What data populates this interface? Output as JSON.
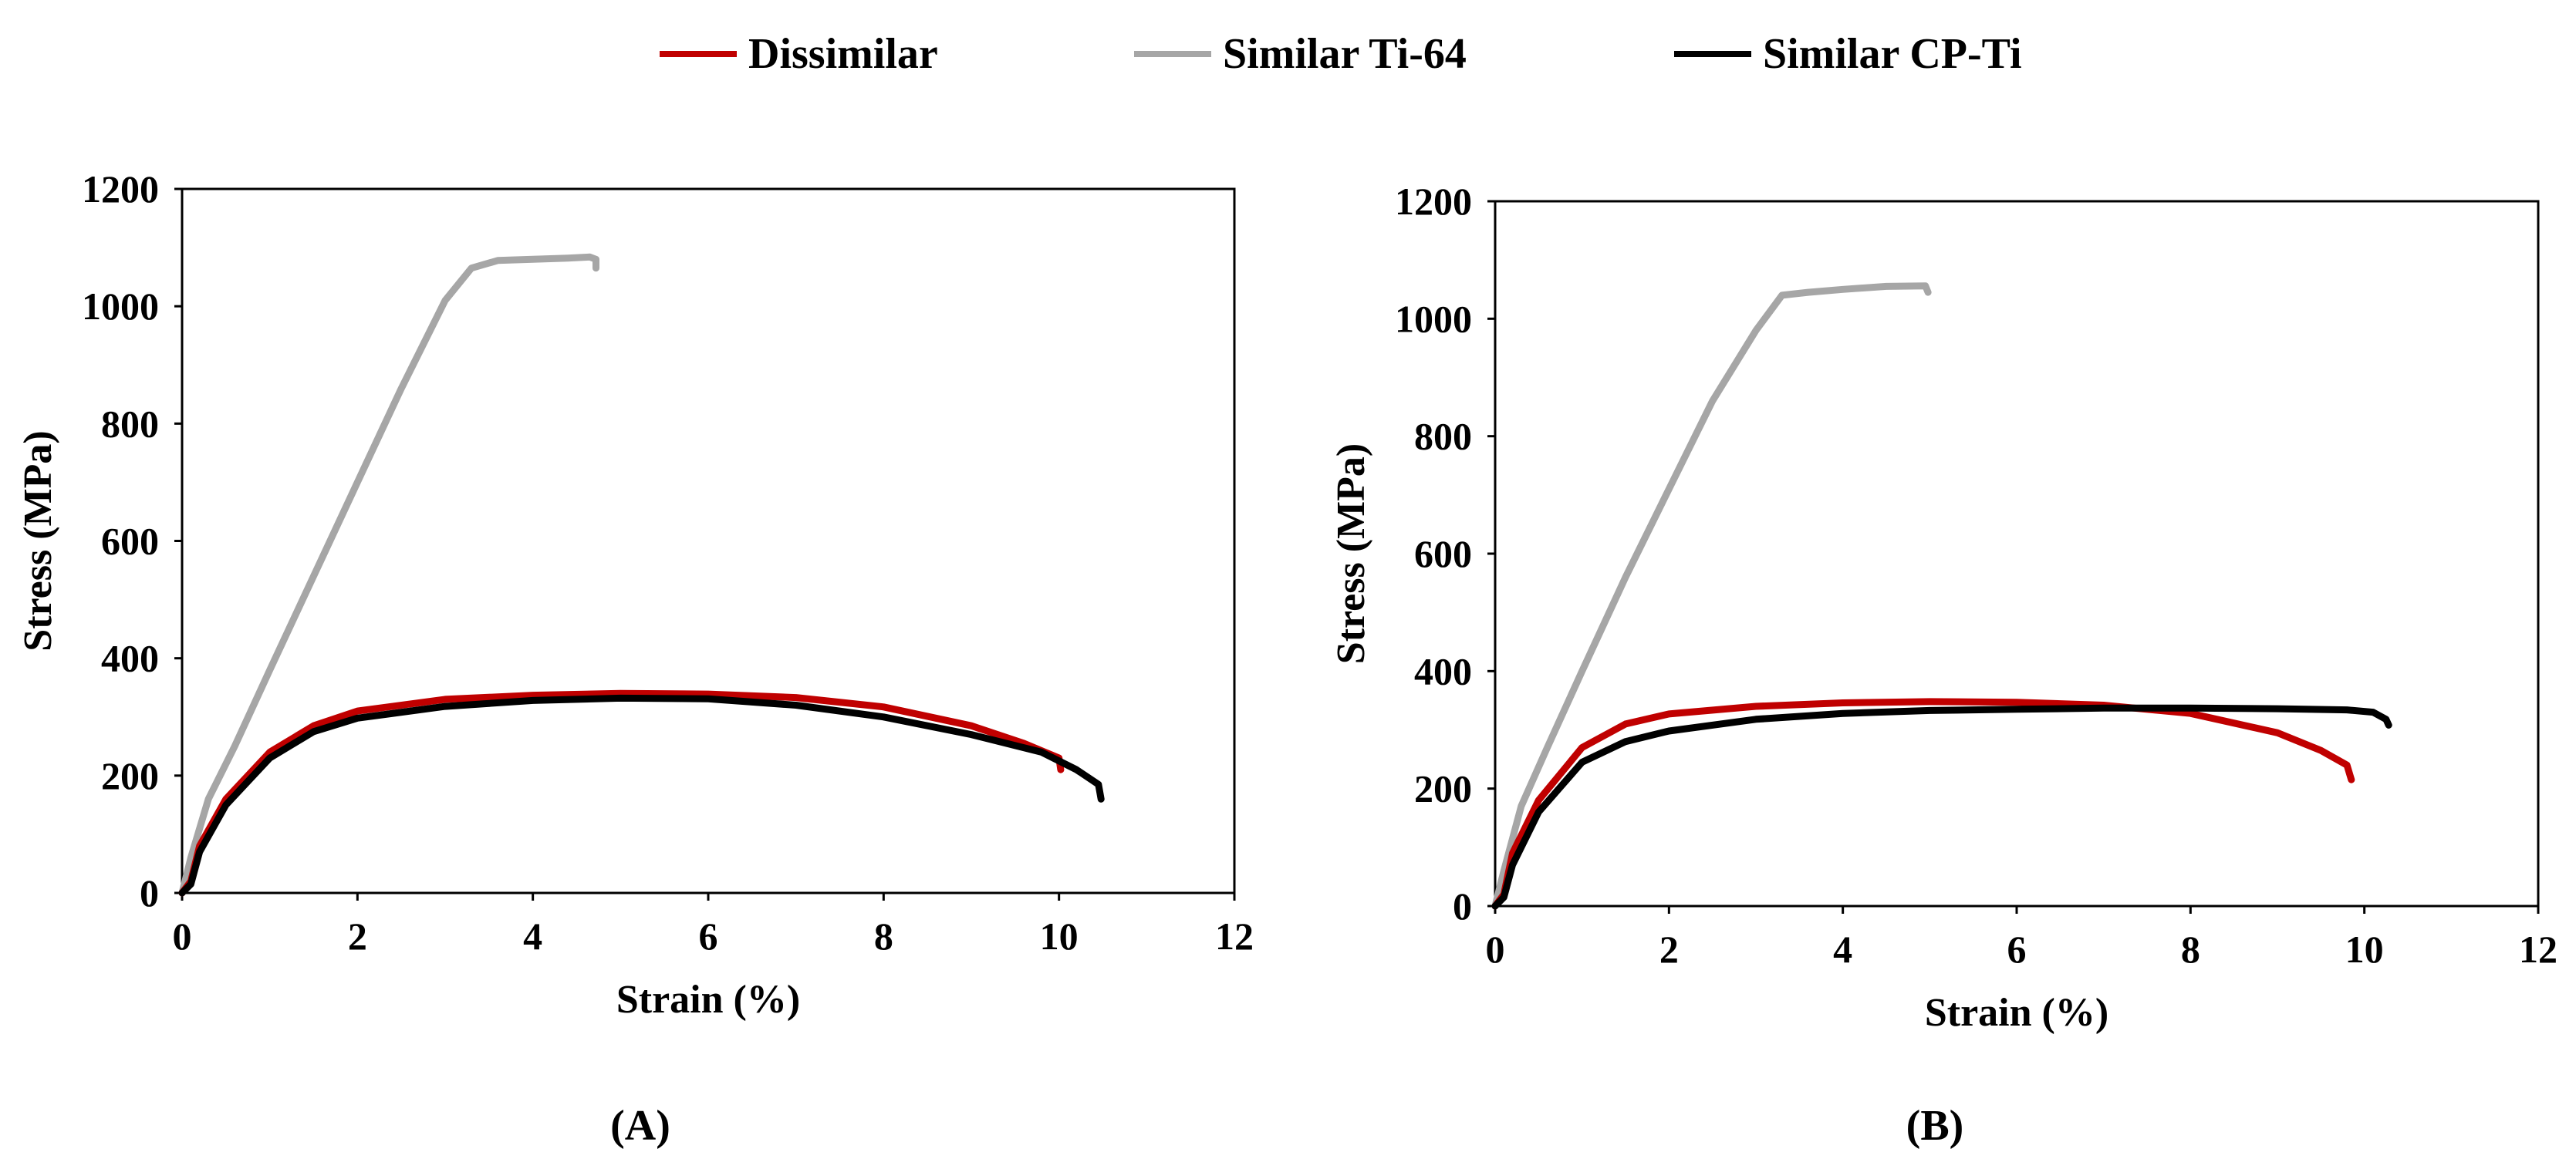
{
  "legend": [
    {
      "label": "Dissimilar",
      "color": "#c00000"
    },
    {
      "label": "Similar Ti-64",
      "color": "#a6a6a6"
    },
    {
      "label": "Similar CP-Ti",
      "color": "#000000"
    }
  ],
  "chart_data": [
    {
      "type": "line",
      "panel_label": "(A)",
      "xlabel": "Strain (%)",
      "ylabel": "Stress (MPa)",
      "xlim": [
        0,
        12
      ],
      "ylim": [
        0,
        1200
      ],
      "xticks": [
        0,
        2,
        4,
        6,
        8,
        10,
        12
      ],
      "yticks": [
        0,
        200,
        400,
        600,
        800,
        1000,
        1200
      ],
      "series": [
        {
          "name": "Similar Ti-64",
          "color": "#a6a6a6",
          "points": [
            [
              0,
              0
            ],
            [
              0.1,
              60
            ],
            [
              0.3,
              160
            ],
            [
              0.6,
              250
            ],
            [
              1.0,
              380
            ],
            [
              1.5,
              540
            ],
            [
              2.0,
              700
            ],
            [
              2.5,
              860
            ],
            [
              3.0,
              1010
            ],
            [
              3.3,
              1065
            ],
            [
              3.6,
              1078
            ],
            [
              4.0,
              1080
            ],
            [
              4.4,
              1082
            ],
            [
              4.65,
              1084
            ],
            [
              4.72,
              1080
            ],
            [
              4.72,
              1065
            ]
          ]
        },
        {
          "name": "Dissimilar",
          "color": "#c00000",
          "points": [
            [
              0,
              0
            ],
            [
              0.1,
              20
            ],
            [
              0.2,
              80
            ],
            [
              0.5,
              160
            ],
            [
              1.0,
              240
            ],
            [
              1.5,
              285
            ],
            [
              2.0,
              310
            ],
            [
              3.0,
              330
            ],
            [
              4.0,
              337
            ],
            [
              5.0,
              340
            ],
            [
              6.0,
              339
            ],
            [
              7.0,
              333
            ],
            [
              8.0,
              317
            ],
            [
              9.0,
              285
            ],
            [
              9.6,
              255
            ],
            [
              10.0,
              230
            ],
            [
              10.02,
              210
            ]
          ]
        },
        {
          "name": "Similar CP-Ti",
          "color": "#000000",
          "points": [
            [
              0,
              0
            ],
            [
              0.1,
              15
            ],
            [
              0.2,
              70
            ],
            [
              0.5,
              150
            ],
            [
              1.0,
              230
            ],
            [
              1.5,
              275
            ],
            [
              2.0,
              298
            ],
            [
              3.0,
              318
            ],
            [
              4.0,
              328
            ],
            [
              5.0,
              332
            ],
            [
              6.0,
              331
            ],
            [
              7.0,
              320
            ],
            [
              8.0,
              300
            ],
            [
              9.0,
              270
            ],
            [
              9.8,
              240
            ],
            [
              10.2,
              210
            ],
            [
              10.45,
              185
            ],
            [
              10.48,
              160
            ]
          ]
        }
      ]
    },
    {
      "type": "line",
      "panel_label": "(B)",
      "xlabel": "Strain (%)",
      "ylabel": "Stress (MPa)",
      "xlim": [
        0,
        12
      ],
      "ylim": [
        0,
        1200
      ],
      "xticks": [
        0,
        2,
        4,
        6,
        8,
        10,
        12
      ],
      "yticks": [
        0,
        200,
        400,
        600,
        800,
        1000,
        1200
      ],
      "series": [
        {
          "name": "Similar Ti-64",
          "color": "#a6a6a6",
          "points": [
            [
              0,
              0
            ],
            [
              0.1,
              60
            ],
            [
              0.3,
              170
            ],
            [
              0.6,
              270
            ],
            [
              1.0,
              400
            ],
            [
              1.5,
              560
            ],
            [
              2.0,
              710
            ],
            [
              2.5,
              860
            ],
            [
              3.0,
              980
            ],
            [
              3.3,
              1040
            ],
            [
              3.6,
              1045
            ],
            [
              4.0,
              1050
            ],
            [
              4.5,
              1055
            ],
            [
              4.95,
              1056
            ],
            [
              4.98,
              1045
            ]
          ]
        },
        {
          "name": "Dissimilar",
          "color": "#c00000",
          "points": [
            [
              0,
              0
            ],
            [
              0.1,
              20
            ],
            [
              0.2,
              90
            ],
            [
              0.5,
              180
            ],
            [
              1.0,
              270
            ],
            [
              1.5,
              310
            ],
            [
              2.0,
              327
            ],
            [
              3.0,
              340
            ],
            [
              4.0,
              346
            ],
            [
              5.0,
              348
            ],
            [
              6.0,
              347
            ],
            [
              7.0,
              342
            ],
            [
              8.0,
              328
            ],
            [
              9.0,
              295
            ],
            [
              9.5,
              265
            ],
            [
              9.8,
              240
            ],
            [
              9.85,
              215
            ]
          ]
        },
        {
          "name": "Similar CP-Ti",
          "color": "#000000",
          "points": [
            [
              0,
              0
            ],
            [
              0.1,
              15
            ],
            [
              0.2,
              70
            ],
            [
              0.5,
              160
            ],
            [
              1.0,
              245
            ],
            [
              1.5,
              280
            ],
            [
              2.0,
              298
            ],
            [
              3.0,
              318
            ],
            [
              4.0,
              328
            ],
            [
              5.0,
              333
            ],
            [
              6.0,
              335
            ],
            [
              7.0,
              337
            ],
            [
              8.0,
              337
            ],
            [
              9.0,
              336
            ],
            [
              9.8,
              334
            ],
            [
              10.1,
              330
            ],
            [
              10.25,
              318
            ],
            [
              10.28,
              308
            ]
          ]
        }
      ]
    }
  ]
}
